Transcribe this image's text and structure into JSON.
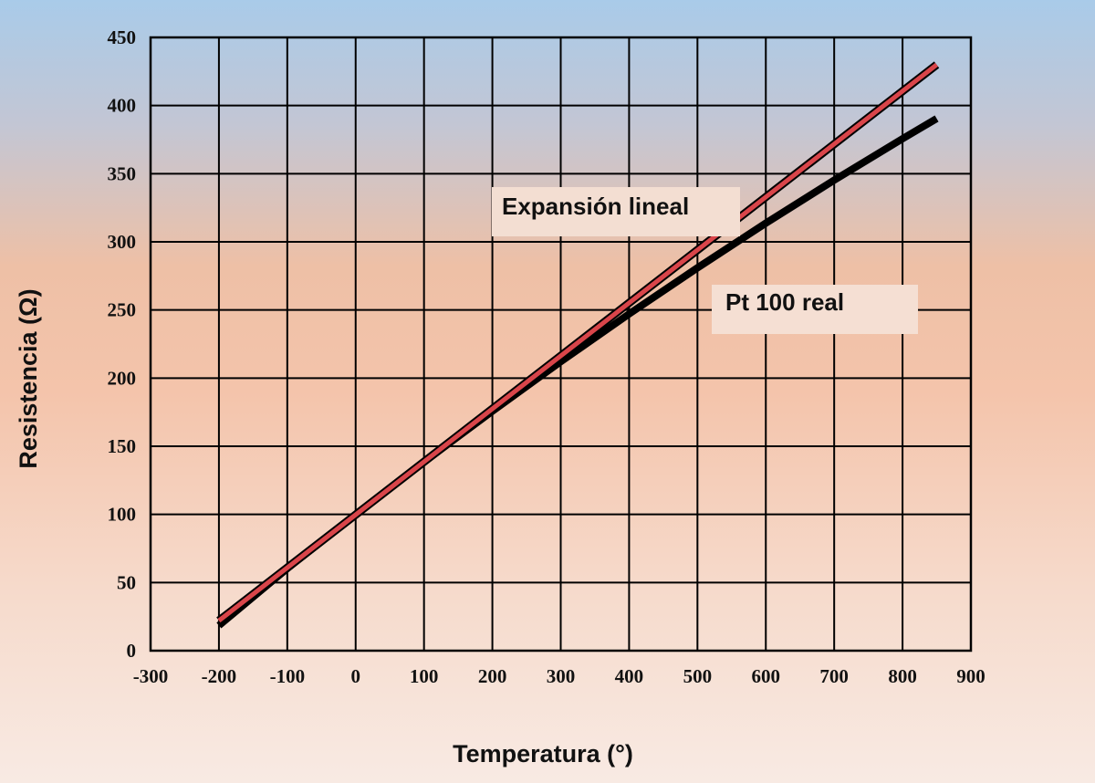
{
  "chart_data": {
    "type": "line",
    "title": "",
    "xlabel": "Temperatura (°)",
    "ylabel": "Resistencia (Ω)",
    "xlim": [
      -300,
      900
    ],
    "ylim": [
      0,
      450
    ],
    "x_ticks": [
      "-300",
      "-200",
      "-100",
      "0",
      "100",
      "200",
      "300",
      "400",
      "500",
      "600",
      "700",
      "800",
      "900"
    ],
    "y_ticks": [
      "0",
      "50",
      "100",
      "150",
      "200",
      "250",
      "300",
      "350",
      "400",
      "450"
    ],
    "grid": true,
    "series": [
      {
        "name": "Expansión lineal",
        "color": "#d9454a",
        "x": [
          -200,
          850
        ],
        "y": [
          22,
          430
        ]
      },
      {
        "name": "Pt 100 real",
        "color": "#000000",
        "x": [
          -200,
          -100,
          0,
          100,
          200,
          300,
          400,
          500,
          600,
          700,
          800,
          850
        ],
        "y": [
          18.5,
          60.3,
          100,
          138.5,
          175.8,
          212.1,
          247.1,
          280.9,
          313.7,
          345.3,
          375.7,
          390.5
        ]
      }
    ]
  }
}
